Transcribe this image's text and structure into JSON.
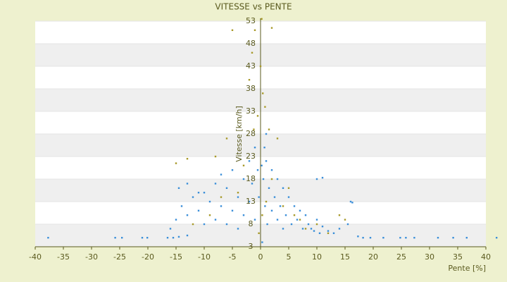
{
  "chart_data": {
    "type": "scatter",
    "title": "VITESSE vs PENTE",
    "x_label": "Pente [%]",
    "y_label": "Vitesse [km/h]",
    "xlim": [
      -40,
      40
    ],
    "xticks": [
      -40,
      -35,
      -30,
      -25,
      -20,
      -15,
      -10,
      -5,
      0,
      5,
      10,
      15,
      20,
      25,
      30,
      35,
      40
    ],
    "ylim": [
      3,
      53
    ],
    "yticks": [
      3,
      8,
      13,
      18,
      23,
      28,
      33,
      38,
      43,
      48,
      53
    ],
    "grid": true,
    "series": [
      {
        "color": "#3b8fd9",
        "x": [
          -37.7,
          -25.8,
          -24.6,
          -21,
          -20.1,
          -16.5,
          -15.5,
          -14.5,
          -13,
          17.3,
          18.2,
          19.5,
          21.8,
          24.8,
          25.8,
          27.3,
          31.5,
          34.2,
          36.6,
          41.9,
          -15,
          -14,
          -13,
          -12,
          -11,
          -10,
          -10,
          -9,
          -8,
          -8,
          -7,
          -7,
          -6,
          -6,
          -5,
          -5,
          -4,
          -4,
          -3,
          -3,
          -2,
          -2,
          -1.5,
          -1,
          -1,
          -0.5,
          -0.3,
          0.2,
          0.5,
          0.8,
          1,
          1.2,
          1.5,
          2,
          2,
          2.5,
          3,
          3,
          3.5,
          4,
          4,
          4.5,
          5,
          5.5,
          6,
          6.5,
          7,
          7.5,
          8,
          8.5,
          9,
          9.5,
          10,
          10.5,
          11,
          12,
          13,
          14,
          15.5,
          16,
          16.3,
          10,
          11,
          -14.5,
          -13,
          -11,
          1,
          0.7,
          0.3,
          -16
        ],
        "values": [
          5,
          5,
          5,
          5,
          5,
          5,
          5,
          5.2,
          5.5,
          5.3,
          5,
          5,
          5,
          5,
          5,
          5,
          5,
          5,
          5,
          5,
          9,
          12,
          10,
          14,
          11,
          8,
          15,
          13,
          17,
          9,
          12,
          19,
          16,
          8,
          11,
          20,
          14,
          7,
          18,
          10,
          22,
          13,
          17,
          25,
          9,
          20,
          14,
          21,
          18,
          12,
          22,
          8,
          16,
          20,
          11,
          14,
          18,
          9,
          12,
          16,
          7,
          10,
          14,
          8,
          12,
          9,
          11,
          7,
          10,
          8,
          7,
          6.5,
          9,
          6,
          7.5,
          6.5,
          6,
          7,
          8,
          13,
          12.8,
          18,
          18.3,
          16,
          17,
          15,
          28,
          25,
          4,
          7
        ]
      },
      {
        "color": "#a89a2a",
        "x": [
          -5,
          -1,
          0.2,
          2,
          -2,
          -1.5,
          0,
          0.4,
          -0.5,
          0.8,
          -1.2,
          1.5,
          -15,
          -13,
          -8,
          -6,
          3,
          -4,
          4,
          6,
          8,
          10,
          12,
          15,
          -9,
          -12,
          -3,
          2,
          5,
          -7,
          1,
          0.3,
          -0.3,
          7,
          14
        ],
        "values": [
          51,
          51,
          53.5,
          51.5,
          40,
          46,
          43,
          37,
          32,
          34,
          29,
          29,
          21.5,
          22.5,
          23,
          27,
          27,
          15,
          12,
          10,
          7,
          8,
          6,
          9,
          10,
          8,
          21,
          18,
          16,
          14,
          13,
          10,
          6,
          9,
          10
        ]
      }
    ]
  }
}
